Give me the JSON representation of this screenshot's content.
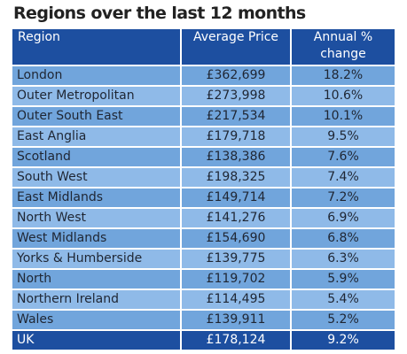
{
  "title": "Regions over the last 12 months",
  "table": {
    "headers": {
      "region": "Region",
      "price": "Average Price",
      "change_line1": "Annual %",
      "change_line2": "change"
    },
    "rows": [
      {
        "region": "London",
        "price": "£362,699",
        "change": "18.2%"
      },
      {
        "region": "Outer Metropolitan",
        "price": "£273,998",
        "change": "10.6%"
      },
      {
        "region": "Outer South East",
        "price": "£217,534",
        "change": "10.1%"
      },
      {
        "region": "East Anglia",
        "price": "£179,718",
        "change": "9.5%"
      },
      {
        "region": "Scotland",
        "price": "£138,386",
        "change": "7.6%"
      },
      {
        "region": "South West",
        "price": "£198,325",
        "change": "7.4%"
      },
      {
        "region": "East Midlands",
        "price": "£149,714",
        "change": "7.2%"
      },
      {
        "region": "North West",
        "price": "£141,276",
        "change": "6.9%"
      },
      {
        "region": "West Midlands",
        "price": "£154,690",
        "change": "6.8%"
      },
      {
        "region": "Yorks & Humberside",
        "price": "£139,775",
        "change": "6.3%"
      },
      {
        "region": "North",
        "price": "£119,702",
        "change": "5.9%"
      },
      {
        "region": "Northern Ireland",
        "price": "£114,495",
        "change": "5.4%"
      },
      {
        "region": "Wales",
        "price": "£139,911",
        "change": "5.2%"
      }
    ],
    "total": {
      "region": "UK",
      "price": "£178,124",
      "change": "9.2%"
    }
  },
  "colors": {
    "header_bg": "#1d4fa0",
    "row_dark": "#71a5dc",
    "row_light": "#8fbae8",
    "header_text": "#ffffff"
  }
}
